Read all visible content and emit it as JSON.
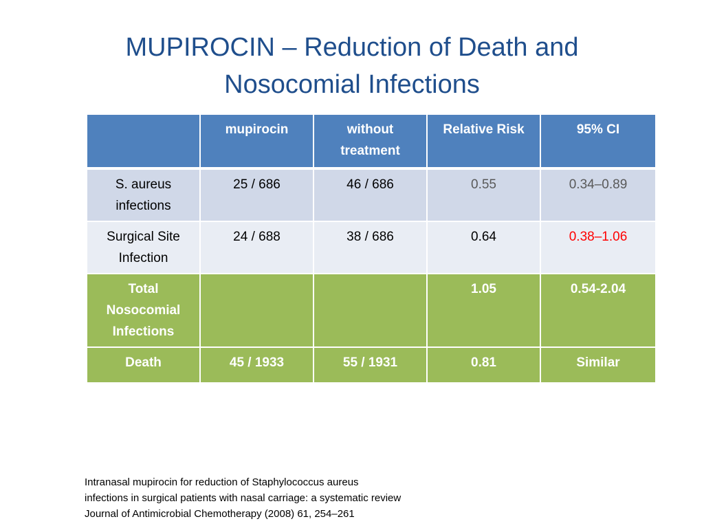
{
  "title": {
    "line1": "MUPIROCIN – Reduction of Death and",
    "line2": "Nosocomial Infections"
  },
  "table": {
    "headers": [
      "",
      "mupirocin",
      "without treatment",
      "Relative Risk",
      "95% CI"
    ],
    "rows": [
      {
        "label": "S. aureus infections",
        "mupirocin": "25 / 686",
        "without": "46 / 686",
        "rr": "0.55",
        "ci": "0.34–0.89"
      },
      {
        "label": "Surgical Site Infection",
        "mupirocin": "24 / 688",
        "without": "38 / 686",
        "rr": "0.64",
        "ci": "0.38–1.06"
      },
      {
        "label": "Total Nosocomial Infections",
        "mupirocin": "",
        "without": "",
        "rr": "1.05",
        "ci": "0.54-2.04"
      },
      {
        "label": "Death",
        "mupirocin": "45 / 1933",
        "without": "55 / 1931",
        "rr": "0.81",
        "ci": "Similar"
      }
    ]
  },
  "reference": {
    "line1": "Intranasal mupirocin for reduction of Staphylococcus aureus",
    "line2": "infections in surgical patients with nasal carriage: a systematic review",
    "line3": "Journal of Antimicrobial Chemotherapy (2008) 61, 254–261"
  },
  "colors": {
    "title": "#1f4e8c",
    "header_bg": "#4f81bd",
    "row_light_blue": "#d0d8e8",
    "row_lighter_blue": "#e9edf4",
    "row_green": "#9bbb59",
    "highlight_red": "#ff0000"
  }
}
